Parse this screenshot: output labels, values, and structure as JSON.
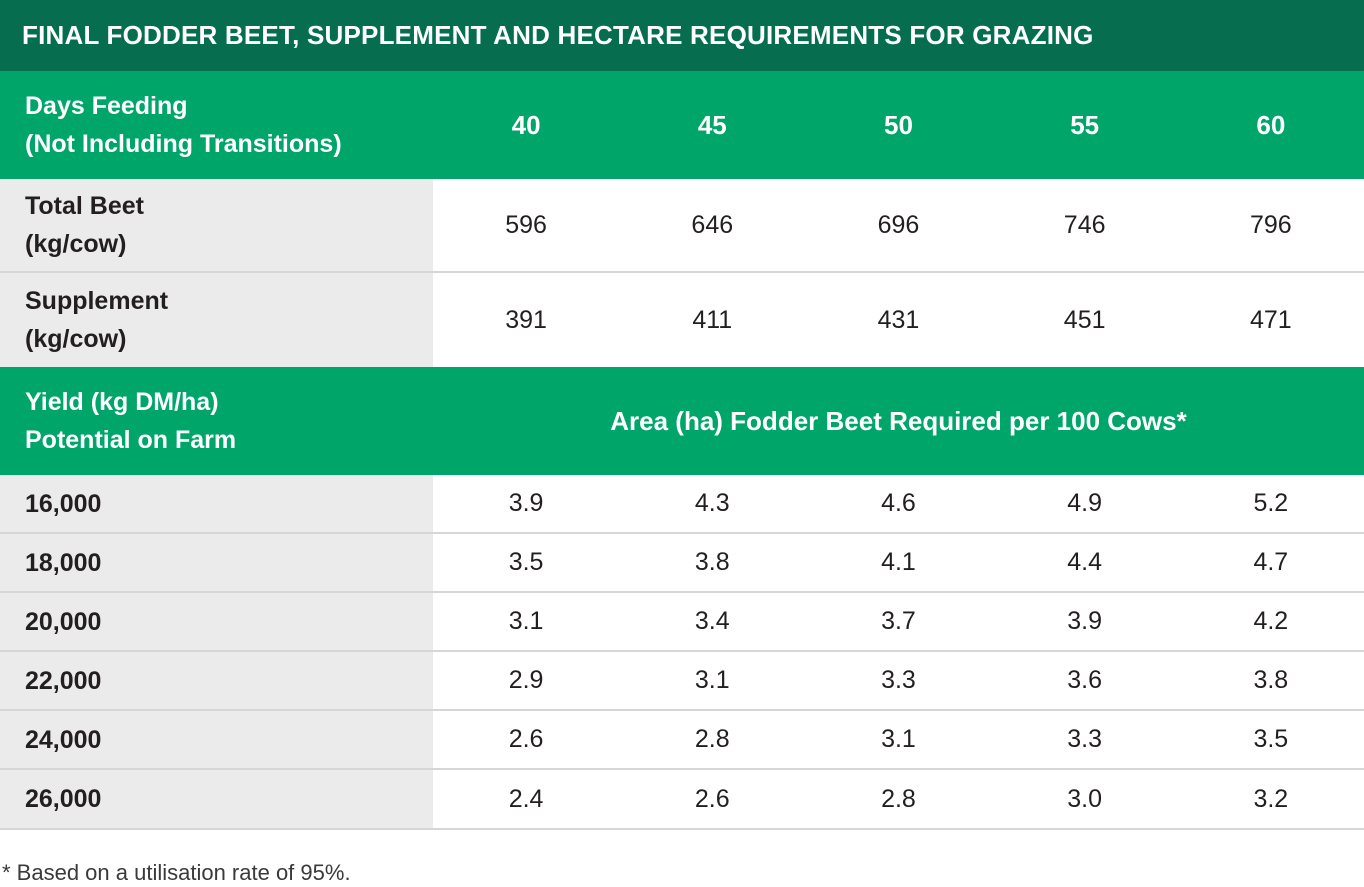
{
  "title": "FINAL FODDER BEET, SUPPLEMENT AND HECTARE REQUIREMENTS FOR GRAZING",
  "days_header": {
    "label_line1": "Days Feeding",
    "label_line2": "(Not Including Transitions)",
    "values": [
      "40",
      "45",
      "50",
      "55",
      "60"
    ]
  },
  "top_rows": [
    {
      "label_line1": "Total Beet",
      "label_line2": "(kg/cow)",
      "values": [
        "596",
        "646",
        "696",
        "746",
        "796"
      ]
    },
    {
      "label_line1": "Supplement",
      "label_line2": "(kg/cow)",
      "values": [
        "391",
        "411",
        "431",
        "451",
        "471"
      ]
    }
  ],
  "yield_header": {
    "label_line1": "Yield (kg DM/ha)",
    "label_line2": "Potential on Farm",
    "span_label": "Area (ha) Fodder Beet Required per 100 Cows*"
  },
  "yield_rows": [
    {
      "label": "16,000",
      "values": [
        "3.9",
        "4.3",
        "4.6",
        "4.9",
        "5.2"
      ]
    },
    {
      "label": "18,000",
      "values": [
        "3.5",
        "3.8",
        "4.1",
        "4.4",
        "4.7"
      ]
    },
    {
      "label": "20,000",
      "values": [
        "3.1",
        "3.4",
        "3.7",
        "3.9",
        "4.2"
      ]
    },
    {
      "label": "22,000",
      "values": [
        "2.9",
        "3.1",
        "3.3",
        "3.6",
        "3.8"
      ]
    },
    {
      "label": "24,000",
      "values": [
        "2.6",
        "2.8",
        "3.1",
        "3.3",
        "3.5"
      ]
    },
    {
      "label": "26,000",
      "values": [
        "2.4",
        "2.6",
        "2.8",
        "3.0",
        "3.2"
      ]
    }
  ],
  "footnote": "* Based on a utilisation rate of 95%.",
  "colors": {
    "title_bg": "#066e4f",
    "header_bg": "#00a56a",
    "label_bg": "#ebebeb"
  }
}
